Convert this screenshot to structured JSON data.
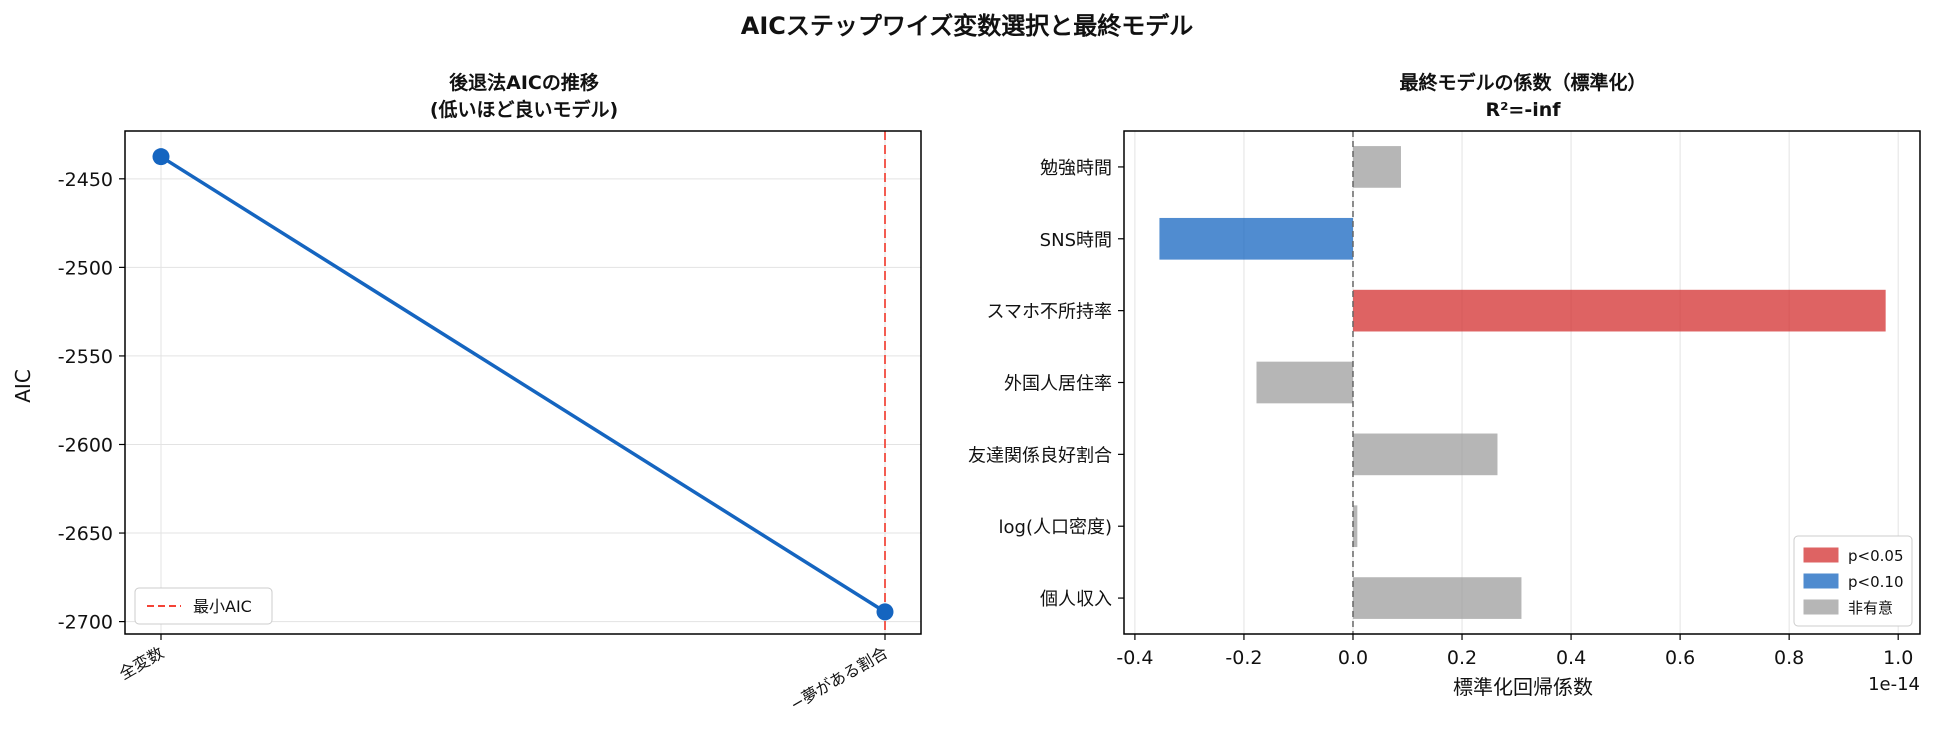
{
  "figure": {
    "suptitle": "AICステップワイズ変数選択と最終モデル"
  },
  "chart_data": [
    {
      "type": "line",
      "title_line1": "後退法AICの推移",
      "title_line2": "(低いほど良いモデル)",
      "ylabel": "AIC",
      "xlabel": "",
      "categories": [
        "全変数",
        "−夢がある割合"
      ],
      "series": [
        {
          "values": [
            -2437.5,
            -2694.5
          ],
          "color": "#1565c0"
        }
      ],
      "ylim": [
        -2707,
        -2423
      ],
      "yticks": [
        -2450,
        -2500,
        -2550,
        -2600,
        -2650,
        -2700
      ],
      "ytick_labels": [
        "-2450",
        "-2500",
        "-2550",
        "-2600",
        "-2650",
        "-2700"
      ],
      "min_aic_index": 1,
      "min_line_color": "#f44336",
      "legend": {
        "label": "最小AIC",
        "position": "lower-left"
      },
      "grid": true
    },
    {
      "type": "bar",
      "orientation": "horizontal",
      "title_line1": "最終モデルの係数（標準化）",
      "title_line2": "R²=-inf",
      "xlabel": "標準化回帰係数",
      "offset_text": "1e-14",
      "categories": [
        "勉強時間",
        "SNS時間",
        "スマホ不所持率",
        "外国人居住率",
        "友達関係良好割合",
        "log(人口密度)",
        "個人収入"
      ],
      "values": [
        0.088,
        -0.355,
        0.977,
        -0.177,
        0.265,
        0.008,
        0.309
      ],
      "significance": [
        "ns",
        "p10",
        "p05",
        "ns",
        "ns",
        "ns",
        "ns"
      ],
      "xlim": [
        -0.42,
        1.04
      ],
      "xticks": [
        -0.4,
        -0.2,
        0.0,
        0.2,
        0.4,
        0.6,
        0.8,
        1.0
      ],
      "xtick_labels": [
        "-0.4",
        "-0.2",
        "0.0",
        "0.2",
        "0.4",
        "0.6",
        "0.8",
        "1.0"
      ],
      "colors": {
        "p05": "#d32f2f",
        "p10": "#1565c0",
        "ns": "#9e9e9e"
      },
      "legend": {
        "position": "lower-right",
        "entries": [
          {
            "key": "p05",
            "label": "p<0.05"
          },
          {
            "key": "p10",
            "label": "p<0.10"
          },
          {
            "key": "ns",
            "label": "非有意"
          }
        ]
      },
      "grid": true
    }
  ]
}
